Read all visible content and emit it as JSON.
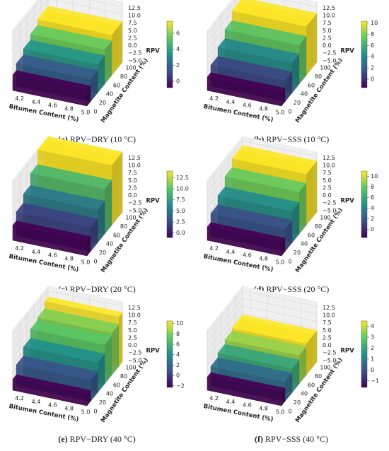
{
  "chart_data": [
    {
      "type": "surface3d",
      "label": "(a)",
      "caption": "RPV−DRY (10 °C)",
      "xlabel": "Bitumen Content (%)",
      "ylabel": "Magnetite Content (%)",
      "zlabel": "RPV",
      "xlim": [
        4.1,
        5.0
      ],
      "xticks": [
        4.2,
        4.4,
        4.6,
        4.8,
        {
          "value": 5,
          "label": "5.0"
        }
      ],
      "ylim": [
        0,
        100
      ],
      "yticks": [
        0,
        20,
        40,
        60,
        80,
        100
      ],
      "zlim": [
        -6,
        14
      ],
      "zticks": [
        {
          "value": -5,
          "label": "−5.0"
        },
        {
          "value": -2.5,
          "label": "−2.5"
        },
        {
          "value": 0,
          "label": "0.0"
        },
        2.5,
        {
          "value": 5,
          "label": "5.0"
        },
        7.5,
        {
          "value": 10,
          "label": "10.0"
        },
        12.5
      ],
      "y": [
        0,
        20,
        40,
        60,
        80,
        100
      ],
      "values": [
        -0.8,
        1.5,
        3.5,
        5.5,
        7.5,
        7.5
      ],
      "clim": [
        -0.8,
        7.5
      ],
      "cticks": [
        0,
        2,
        4,
        6
      ],
      "colormap": "viridis",
      "grid": true
    },
    {
      "type": "surface3d",
      "label": "(b)",
      "caption": "RPV−SSS (10 °C)",
      "xlabel": "Bitumen Content (%)",
      "ylabel": "Magnetite Content (%)",
      "zlabel": "RPV",
      "xlim": [
        4.1,
        5.0
      ],
      "xticks": [
        4.2,
        4.4,
        4.6,
        4.8,
        {
          "value": 5,
          "label": "5.0"
        }
      ],
      "ylim": [
        0,
        100
      ],
      "yticks": [
        0,
        20,
        40,
        60,
        80,
        100
      ],
      "zlim": [
        -6,
        14
      ],
      "zticks": [
        {
          "value": -5,
          "label": "−5.0"
        },
        {
          "value": -2.5,
          "label": "−2.5"
        },
        {
          "value": 0,
          "label": "0.0"
        },
        2.5,
        {
          "value": 5,
          "label": "5.0"
        },
        7.5,
        {
          "value": 10,
          "label": "10.0"
        },
        12.5
      ],
      "y": [
        0,
        20,
        40,
        60,
        80,
        100
      ],
      "values": [
        -1.5,
        1,
        4,
        7,
        10.3,
        10.3
      ],
      "clim": [
        -1.5,
        10.3
      ],
      "cticks": [
        0,
        2,
        4,
        6,
        8,
        10
      ],
      "colormap": "viridis",
      "grid": true
    },
    {
      "type": "surface3d",
      "label": "(c)",
      "caption": "RPV−DRY (20 °C)",
      "xlabel": "Bitumen Content (%)",
      "ylabel": "Magnetite Content (%)",
      "zlabel": "RPV",
      "xlim": [
        4.1,
        5.0
      ],
      "xticks": [
        4.2,
        4.4,
        4.6,
        4.8,
        {
          "value": 5,
          "label": "5.0"
        }
      ],
      "ylim": [
        0,
        100
      ],
      "yticks": [
        0,
        20,
        40,
        60,
        80,
        100
      ],
      "zlim": [
        -6,
        14
      ],
      "zticks": [
        {
          "value": -5,
          "label": "−5.0"
        },
        {
          "value": -2.5,
          "label": "−2.5"
        },
        {
          "value": 0,
          "label": "0.0"
        },
        2.5,
        {
          "value": 5,
          "label": "5.0"
        },
        7.5,
        {
          "value": 10,
          "label": "10.0"
        },
        12.5
      ],
      "y": [
        0,
        20,
        40,
        60,
        80,
        100
      ],
      "values": [
        -1,
        2,
        5,
        9,
        14,
        14
      ],
      "clim": [
        -1,
        14
      ],
      "cticks": [
        {
          "value": 0,
          "label": "0.0"
        },
        2.5,
        {
          "value": 5,
          "label": "5.0"
        },
        7.5,
        {
          "value": 10,
          "label": "10.0"
        },
        12.5
      ],
      "colormap": "viridis",
      "grid": true
    },
    {
      "type": "surface3d",
      "label": "(d)",
      "caption": "RPV−SSS (20 °C)",
      "xlabel": "Bitumen Content (%)",
      "ylabel": "Magnetite Content (%)",
      "zlabel": "RPV",
      "xlim": [
        4.1,
        5.0
      ],
      "xticks": [
        4.2,
        4.4,
        4.6,
        4.8,
        {
          "value": 5,
          "label": "5.0"
        }
      ],
      "ylim": [
        0,
        100
      ],
      "yticks": [
        0,
        20,
        40,
        60,
        80,
        100
      ],
      "zlim": [
        -6,
        14
      ],
      "zticks": [
        {
          "value": -5,
          "label": "−5.0"
        },
        {
          "value": -2.5,
          "label": "−2.5"
        },
        {
          "value": 0,
          "label": "0.0"
        },
        2.5,
        {
          "value": 5,
          "label": "5.0"
        },
        7.5,
        {
          "value": 10,
          "label": "10.0"
        },
        12.5
      ],
      "y": [
        0,
        20,
        40,
        60,
        80,
        100
      ],
      "values": [
        -1.5,
        1.5,
        4.5,
        8,
        11,
        11
      ],
      "clim": [
        -1.5,
        11
      ],
      "cticks": [
        0,
        2,
        4,
        6,
        8,
        10
      ],
      "colormap": "viridis",
      "grid": true
    },
    {
      "type": "surface3d",
      "label": "(e)",
      "caption": "RPV−DRY (40 °C)",
      "xlabel": "Bitumen Content (%)",
      "ylabel": "Magnetite Content (%)",
      "zlabel": "RPV",
      "xlim": [
        4.1,
        5.0
      ],
      "xticks": [
        4.2,
        4.4,
        4.6,
        4.8,
        {
          "value": 5,
          "label": "5.0"
        }
      ],
      "ylim": [
        0,
        100
      ],
      "yticks": [
        0,
        20,
        40,
        60,
        80,
        100
      ],
      "zlim": [
        -6,
        14
      ],
      "zticks": [
        {
          "value": -5,
          "label": "−5.0"
        },
        {
          "value": -2.5,
          "label": "−2.5"
        },
        {
          "value": 0,
          "label": "0.0"
        },
        2.5,
        {
          "value": 5,
          "label": "5.0"
        },
        7.5,
        {
          "value": 10,
          "label": "10.0"
        },
        12.5
      ],
      "y": [
        0,
        20,
        40,
        60,
        80,
        100
      ],
      "values": [
        -2.3,
        1,
        4,
        7,
        8,
        10.5
      ],
      "clim": [
        -2.3,
        10.5
      ],
      "cticks": [
        {
          "value": -2,
          "label": "−2"
        },
        0,
        2,
        4,
        6,
        8,
        10
      ],
      "colormap": "viridis",
      "grid": true
    },
    {
      "type": "surface3d",
      "label": "(f)",
      "caption": "RPV−SSS (40 °C)",
      "xlabel": "Bitumen Content (%)",
      "ylabel": "Magnetite Content (%)",
      "zlabel": "RPV",
      "xlim": [
        4.1,
        5.0
      ],
      "xticks": [
        4.2,
        4.4,
        4.6,
        4.8,
        {
          "value": 5,
          "label": "5.0"
        }
      ],
      "ylim": [
        0,
        100
      ],
      "yticks": [
        0,
        20,
        40,
        60,
        80,
        100
      ],
      "zlim": [
        -6,
        14
      ],
      "zticks": [
        {
          "value": -5,
          "label": "−5.0"
        },
        {
          "value": -2.5,
          "label": "−2.5"
        },
        {
          "value": 0,
          "label": "0.0"
        },
        2.5,
        {
          "value": 5,
          "label": "5.0"
        },
        7.5,
        {
          "value": 10,
          "label": "10.0"
        },
        12.5
      ],
      "y": [
        0,
        20,
        40,
        60,
        80,
        100
      ],
      "values": [
        -1.6,
        0.5,
        2,
        3.5,
        4.5,
        4.5
      ],
      "clim": [
        -1.6,
        4.5
      ],
      "cticks": [
        {
          "value": -1,
          "label": "−1"
        },
        0,
        1,
        2,
        3,
        4
      ],
      "colormap": "viridis",
      "grid": true
    }
  ]
}
